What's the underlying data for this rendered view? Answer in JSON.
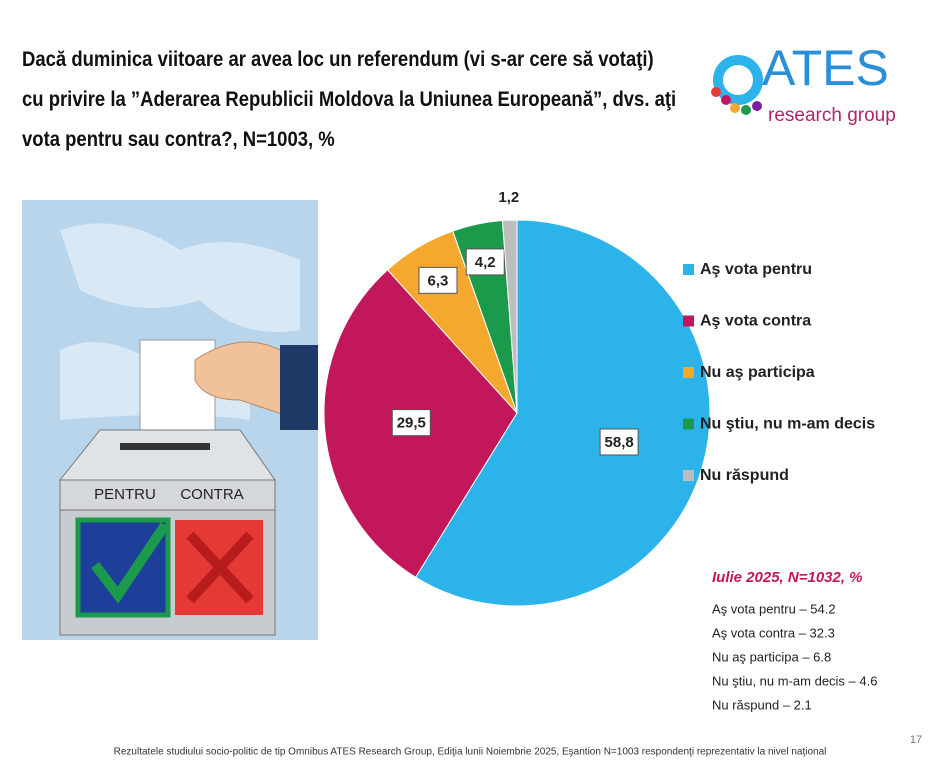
{
  "header": {
    "title": "Dacă duminica viitoare ar avea loc un referendum (vi s-ar cere să votaţi) cu privire la ”Aderarea Republicii Moldova la Uniunea Europeană”, dvs. aţi vota pentru sau contra?, N=1003, %"
  },
  "logo": {
    "name": "ATES",
    "subtitle": "research group"
  },
  "illustration": {
    "labels": [
      "PENTRU",
      "CONTRA"
    ]
  },
  "chart_data": {
    "type": "pie",
    "categories": [
      "Aş vota pentru",
      "Aş vota contra",
      "Nu aş participa",
      "Nu ştiu, nu m-am decis",
      "Nu răspund"
    ],
    "values": [
      58.8,
      29.5,
      6.3,
      4.2,
      1.2
    ],
    "value_labels": [
      "58,8",
      "29,5",
      "6,3",
      "4,2",
      "1,2"
    ],
    "colors": [
      "#2bb3ea",
      "#c2185b",
      "#f5a82e",
      "#1b9a4b",
      "#bdbdbd"
    ],
    "legend": "right"
  },
  "comparison": {
    "title": "Iulie 2025, N=1032, %",
    "items": [
      "Aş vota pentru – 54.2",
      "Aş vota contra – 32.3",
      "Nu aş participa – 6.8",
      "Nu ştiu, nu m-am decis – 4.6",
      "Nu răspund – 2.1"
    ]
  },
  "footer": {
    "text": "Rezultatele studiului socio-politic de tip Omnibus ATES Research Group, Ediţia lunii Noiembrie 2025, Eşantion N=1003 respondenţi reprezentativ la nivel naţional",
    "page_number": "17"
  }
}
